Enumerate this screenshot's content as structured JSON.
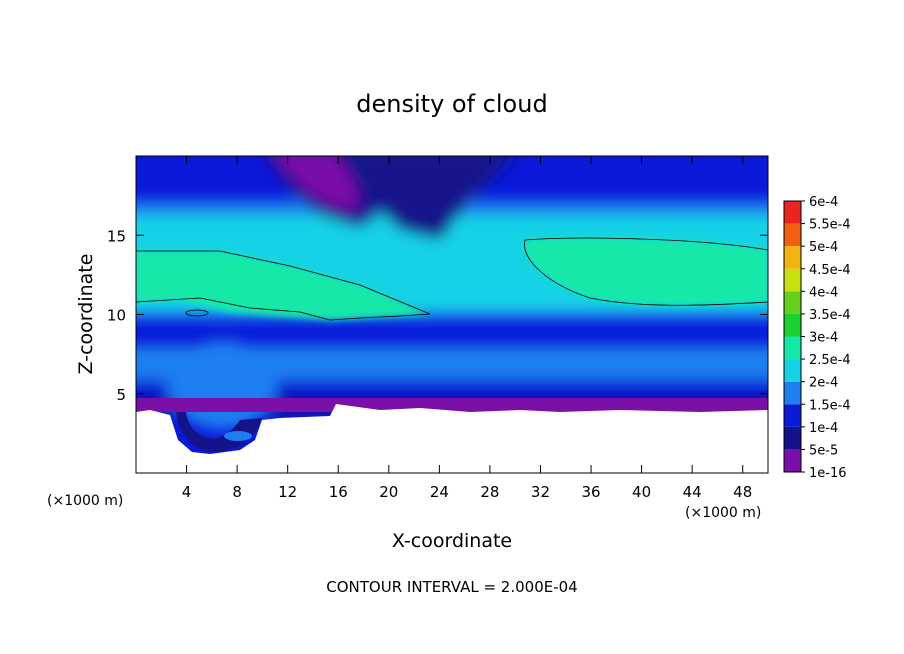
{
  "chart_data": {
    "type": "heatmap",
    "title": "density of cloud",
    "xlabel": "X-coordinate",
    "ylabel": "Z-coordinate",
    "x_unit": "(×1000 m)",
    "y_unit": "(×1000 m)",
    "footer": "CONTOUR INTERVAL = 2.000E-04",
    "xlim": [
      0,
      50
    ],
    "ylim": [
      0,
      20
    ],
    "x_ticks": [
      4,
      8,
      12,
      16,
      20,
      24,
      28,
      32,
      36,
      40,
      44,
      48
    ],
    "y_ticks": [
      5,
      10,
      15
    ],
    "colorbar": {
      "labels": [
        "1e-16",
        "5e-5",
        "1e-4",
        "1.5e-4",
        "2e-4",
        "2.5e-4",
        "3e-4",
        "3.5e-4",
        "4e-4",
        "4.5e-4",
        "5e-4",
        "5.5e-4",
        "6e-4"
      ],
      "colors": [
        "#7a10a8",
        "#14148a",
        "#0a18d8",
        "#1e7ef0",
        "#16d2e6",
        "#14e8a8",
        "#1cd030",
        "#64d01c",
        "#c8e010",
        "#f2b410",
        "#f06010",
        "#ec2420",
        "#f27a82"
      ]
    },
    "contour_interval": 0.0002,
    "contour_level": 0.0002
  }
}
